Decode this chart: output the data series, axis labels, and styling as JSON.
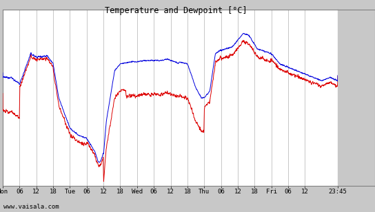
{
  "title": "Temperature and Dewpoint [°C]",
  "ylim": [
    -18,
    8
  ],
  "yticks": [
    -18,
    -16,
    -14,
    -12,
    -10,
    -8,
    -6,
    -4,
    -2,
    0,
    2,
    4,
    6,
    8
  ],
  "bg_color": "#c8c8c8",
  "plot_bg_color": "#ffffff",
  "grid_color": "#b0b0b0",
  "temp_color": "#0000dd",
  "dew_color": "#dd0000",
  "watermark": "www.vaisala.com",
  "x_labels": [
    "Mon",
    "06",
    "12",
    "18",
    "Tue",
    "06",
    "12",
    "18",
    "Wed",
    "06",
    "12",
    "18",
    "Thu",
    "06",
    "12",
    "18",
    "Fri",
    "06",
    "12",
    "23:45"
  ],
  "x_tick_pos": [
    0,
    6,
    12,
    18,
    24,
    30,
    36,
    42,
    48,
    54,
    60,
    66,
    72,
    78,
    84,
    90,
    96,
    102,
    108,
    119.75
  ],
  "total_hours": 119.75,
  "num_points": 2000
}
